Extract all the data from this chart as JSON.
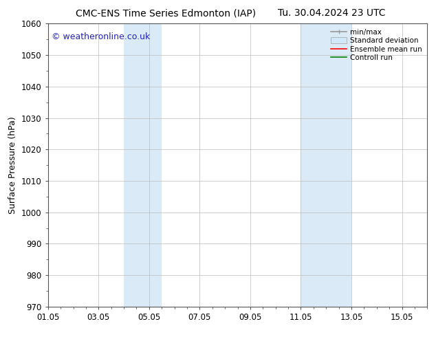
{
  "title_left": "CMC-ENS Time Series Edmonton (IAP)",
  "title_right": "Tu. 30.04.2024 23 UTC",
  "ylabel": "Surface Pressure (hPa)",
  "xlim": [
    1.0,
    16.0
  ],
  "ylim": [
    970,
    1060
  ],
  "yticks": [
    970,
    980,
    990,
    1000,
    1010,
    1020,
    1030,
    1040,
    1050,
    1060
  ],
  "xtick_labels": [
    "01.05",
    "03.05",
    "05.05",
    "07.05",
    "09.05",
    "11.05",
    "13.05",
    "15.05"
  ],
  "xtick_positions": [
    1.0,
    3.0,
    5.0,
    7.0,
    9.0,
    11.0,
    13.0,
    15.0
  ],
  "shaded_bands": [
    {
      "x_start": 4.0,
      "x_end": 5.5,
      "color": "#daeaf6"
    },
    {
      "x_start": 11.0,
      "x_end": 13.0,
      "color": "#daeaf6"
    }
  ],
  "watermark_text": "© weatheronline.co.uk",
  "watermark_color": "#2222bb",
  "watermark_fontsize": 9,
  "legend_labels": [
    "min/max",
    "Standard deviation",
    "Ensemble mean run",
    "Controll run"
  ],
  "legend_line_colors": [
    "#999999",
    "#cccccc",
    "#ff0000",
    "#008000"
  ],
  "background_color": "#ffffff",
  "grid_color": "#bbbbbb",
  "title_fontsize": 10,
  "axis_label_fontsize": 9,
  "tick_fontsize": 8.5
}
